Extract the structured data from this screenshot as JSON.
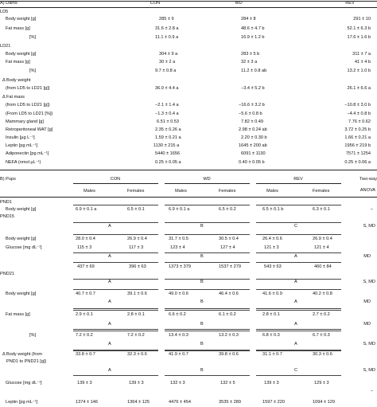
{
  "dams": {
    "section": "A) Dams",
    "headers": {
      "con": "CON",
      "wd": "WD",
      "rev": "REV"
    },
    "ld5": "LD5",
    "ld21": "LD21",
    "rows": {
      "bw5": {
        "label": "Body weight [g]",
        "con": "285 ± 9",
        "wd": "284 ± 8",
        "rev": "291 ± 10"
      },
      "fm5": {
        "label": "Fat mass [g]",
        "con": "31.6 ± 2.8 a",
        "wd": "48.6 ± 4.7 b",
        "rev": "52.1 ± 6.3 b"
      },
      "pct5": {
        "label": "[%]",
        "con": "11.1 ± 0.9 a",
        "wd": "16.9 ± 1.2 b",
        "rev": "17.6 ± 1.6 b"
      },
      "bw21": {
        "label": "Body weight [g]",
        "con": "304 ± 9 a",
        "wd": "283 ± 5 b",
        "rev": "311 ± 7 a"
      },
      "fm21": {
        "label": "Fat mass [g]",
        "con": "30 ± 2 a",
        "wd": "32 ± 3 a",
        "rev": "41 ± 4 b"
      },
      "pct21": {
        "label": "[%]",
        "con": "9.7 ± 0.8 a",
        "wd": "11.2 ± 0.8 ab",
        "rev": "13.2 ± 1.0 b"
      },
      "dbw_a": {
        "label": "Δ Body weight"
      },
      "dbw_b": {
        "label": "(from LD5 to LD21 [g])",
        "con": "36.0 ± 4.4 a",
        "wd": "−3.4 ± 5.2 b",
        "rev": "26.1 ± 6.6 a"
      },
      "dfm_a": {
        "label": "Δ Fat mass"
      },
      "dfm_b": {
        "label": "(from LD5 to LD21 [g])",
        "con": "−2.1 ± 1.4 a",
        "wd": "−16.6 ± 3.2 b",
        "rev": "−10.8 ± 3.0 b"
      },
      "dfm_c": {
        "label": "(From LD5 to LD21 [%])",
        "con": "−1.3 ± 0.4 a",
        "wd": "−5.6 ± 0.8 b",
        "rev": "−4.4 ± 0.8 b"
      },
      "mam": {
        "label": "Mammary gland [g]",
        "con": "6.51 ± 0.53",
        "wd": "7.82 ± 0.49",
        "rev": "7.76 ± 0.62"
      },
      "wat": {
        "label": "Retroperitoneal WAT [g]",
        "con": "2.35 ± 0.26 a",
        "wd": "2.98 ± 0.24 ab",
        "rev": "3.72 ± 0.25 b"
      },
      "ins": {
        "label": "Insulin [µg L⁻¹]",
        "con": "1.59 ± 0.21 a",
        "wd": "2.20 ± 0.30 b",
        "rev": "1.66 ± 0.21 a"
      },
      "lep": {
        "label": "Leptin [pg mL⁻¹]",
        "con": "1130 ± 215 a",
        "wd": "1645 ± 200 ab",
        "rev": "1956 ± 219 b"
      },
      "adi": {
        "label": "Adiponectin [pg mL⁻¹]",
        "con": "5440 ± 1656",
        "wd": "6091 ± 1130",
        "rev": "7571 ± 1254"
      },
      "nefa": {
        "label": "NEFA (nmol µL⁻¹)",
        "con": "0.25 ± 0.05 a",
        "wd": "0.40 ± 0.05 b",
        "rev": "0.25 ± 0.06 a"
      }
    }
  },
  "pups": {
    "section": "B) Pups",
    "headers": {
      "con": "CON",
      "wd": "WD",
      "rev": "REV",
      "anova": "Two-way",
      "anova2": "ANOVA"
    },
    "males": "Males",
    "females": "Females",
    "pnd1": "PND1",
    "pnd15": "PND15",
    "pnd21": "PND21",
    "rows": {
      "bw1": {
        "label": "Body weight [g]",
        "cm": "6.9 ± 0.1 a",
        "cf": "6.5 ± 0.1",
        "wm": "6.9 ± 0.1 a",
        "wf": "6.5 ± 0.2",
        "rm": "6.5 ± 0.1 b",
        "rf": "6.3 ± 0.1",
        "an": "–"
      },
      "bw1g": {
        "con": "A",
        "wd": "B",
        "rev": "C",
        "an": "S, MD"
      },
      "bw15": {
        "label": "Body weight [g]",
        "cm": "28.0 ± 0.4",
        "cf": "26.9 ± 0.4",
        "wm": "31.7 ± 0.5",
        "wf": "30.5 ± 0.4",
        "rm": "26.4 ± 0.6",
        "rf": "26.9 ± 0.4"
      },
      "glu15": {
        "label": "Glucose [mg dL⁻¹]",
        "cm": "115 ± 3",
        "cf": "117 ± 3",
        "wm": "123 ± 4",
        "wf": "127 ± 4",
        "rm": "121 ± 3",
        "rf": "121 ± 4"
      },
      "glu15g": {
        "con": "A",
        "wd": "B",
        "rev": "A",
        "an": "MD"
      },
      "lep15": {
        "cm": "437 ± 69",
        "cf": "396 ± 63",
        "wm": "1373 ± 379",
        "wf": "1537 ± 279",
        "rm": "543 ± 63",
        "rf": "460 ± 84"
      },
      "lep15g": {
        "con": "A",
        "wd": "B",
        "rev": "A",
        "an": "S, MD"
      },
      "bw21": {
        "label": "Body weight [g]",
        "cm": "40.7 ± 0.7",
        "cf": "39.1 ± 0.6",
        "wm": "49.0 ± 0.6",
        "wf": "46.4 ± 0.6",
        "rm": "41.6 ± 0.9",
        "rf": "40.2 ± 0.8"
      },
      "bw21g": {
        "con": "A",
        "wd": "B",
        "rev": "A",
        "an": "MD"
      },
      "fm21": {
        "label": "Fat mass [g]",
        "cm": "2.9 ± 0.1",
        "cf": "2.8 ± 0.1",
        "wm": "6.6 ± 0.2",
        "wf": "6.1 ± 0.2",
        "rm": "2.8 ± 0.1",
        "rf": "2.7 ± 0.2"
      },
      "fm21g": {
        "con": "A",
        "wd": "B",
        "rev": "A",
        "an": "MD"
      },
      "pct21": {
        "label": "[%]",
        "cm": "7.2 ± 0.2",
        "cf": "7.2 ± 0.2",
        "wm": "13.4 ± 0.3",
        "wf": "13.2 ± 0.3",
        "rm": "6.8 ± 0.3",
        "rf": "6.7 ± 0.3"
      },
      "pct21g": {
        "con": "A",
        "wd": "B",
        "rev": "A",
        "an": "S, MD"
      },
      "dbw_a": {
        "label": "Δ Body weight (from",
        "cm": "33.8 ± 0.7",
        "cf": "32.3 ± 0.6",
        "wm": "41.9 ± 0.7",
        "wf": "39.8 ± 0.6",
        "rm": "31.1 ± 0.7",
        "rf": "30.3 ± 0.6"
      },
      "dbw_b": {
        "label": "PND1 to PND21 [g])"
      },
      "dbwg": {
        "con": "A",
        "wd": "B",
        "rev": "C",
        "an": "S, MD"
      },
      "glu21": {
        "label": "Glucose [mg dL⁻¹]",
        "cm": "139 ± 3",
        "cf": "139 ± 3",
        "wm": "132 ± 3",
        "wf": "132 ± 5",
        "rm": "139 ± 3",
        "rf": "129 ± 3"
      },
      "glu21g": {
        "an": "–"
      },
      "lep21": {
        "label": "Leptin [pg mL⁻¹]",
        "cm": "1374 ± 146",
        "cf": "1364 ± 125",
        "wm": "4476 ± 454",
        "wf": "3535 ± 289",
        "rm": "1597 ± 220",
        "rf": "1094 ± 129"
      }
    }
  }
}
